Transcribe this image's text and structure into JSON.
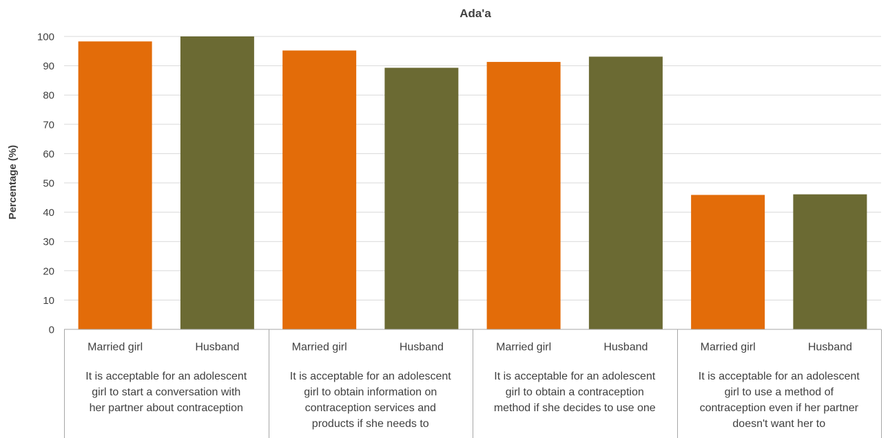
{
  "chart_data": {
    "type": "bar",
    "title": "Ada'a",
    "xlabel": "",
    "ylabel": "Percentage (%)",
    "ylim": [
      0,
      100
    ],
    "yticks": [
      0,
      10,
      20,
      30,
      40,
      50,
      60,
      70,
      80,
      90,
      100
    ],
    "grid": true,
    "legend": "none",
    "groups": [
      {
        "label_lines": [
          "It is acceptable for an adolescent",
          "girl to start a conversation with",
          "her partner about contraception"
        ],
        "bars": [
          {
            "category": "Married girl",
            "value": 98.3
          },
          {
            "category": "Husband",
            "value": 100
          }
        ]
      },
      {
        "label_lines": [
          "It is acceptable for an adolescent",
          "girl to obtain information on",
          "contraception services and",
          "products if she needs to"
        ],
        "bars": [
          {
            "category": "Married girl",
            "value": 95.2
          },
          {
            "category": "Husband",
            "value": 89.3
          }
        ]
      },
      {
        "label_lines": [
          "It is acceptable for an adolescent",
          "girl to obtain a contraception",
          "method if she decides to use one"
        ],
        "bars": [
          {
            "category": "Married girl",
            "value": 91.3
          },
          {
            "category": "Husband",
            "value": 93.1
          }
        ]
      },
      {
        "label_lines": [
          "It is acceptable for an adolescent",
          "girl to use a method of",
          "contraception even if her partner",
          "doesn't want her to"
        ],
        "bars": [
          {
            "category": "Married girl",
            "value": 45.9
          },
          {
            "category": "Husband",
            "value": 46.1
          }
        ]
      }
    ],
    "colors": {
      "Married girl": "#E36C09",
      "Husband": "#6B6A33",
      "grid": "#D9D9D9",
      "axis": "#A6A6A6",
      "text": "#404040"
    }
  }
}
